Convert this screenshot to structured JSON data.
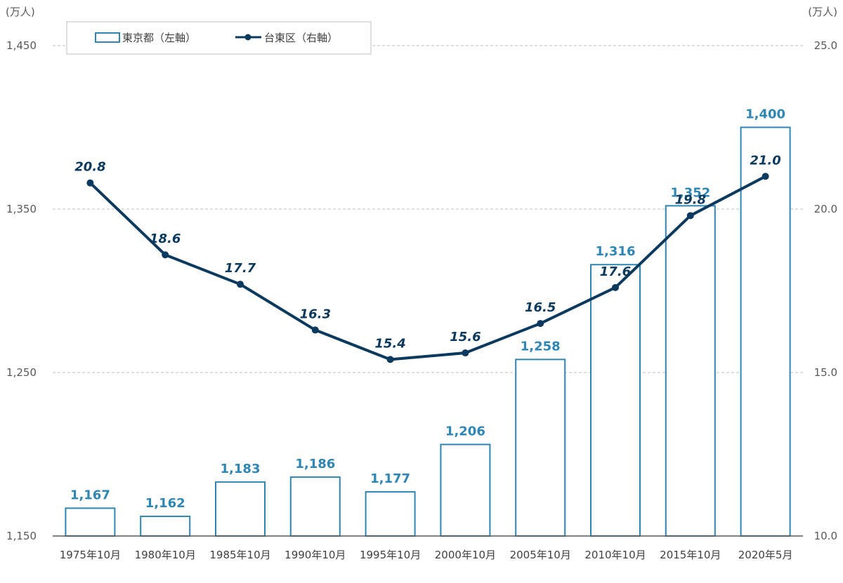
{
  "chart_data": {
    "type": "bar+line",
    "categories": [
      "1975年10月",
      "1980年10月",
      "1985年10月",
      "1990年10月",
      "1995年10月",
      "2000年10月",
      "2005年10月",
      "2010年10月",
      "2015年10月",
      "2020年5月"
    ],
    "series": [
      {
        "name": "東京都（左軸）",
        "type": "bar",
        "axis": "left",
        "values": [
          1167,
          1162,
          1183,
          1186,
          1177,
          1206,
          1258,
          1316,
          1352,
          1400
        ],
        "labels": [
          "1,167",
          "1,162",
          "1,183",
          "1,186",
          "1,177",
          "1,206",
          "1,258",
          "1,316",
          "1,352",
          "1,400"
        ],
        "color": "#2E86B5"
      },
      {
        "name": "台東区（右軸）",
        "type": "line",
        "axis": "right",
        "values": [
          20.8,
          18.6,
          17.7,
          16.3,
          15.4,
          15.6,
          16.5,
          17.6,
          19.8,
          21.0
        ],
        "labels": [
          "20.8",
          "18.6",
          "17.7",
          "16.3",
          "15.4",
          "15.6",
          "16.5",
          "17.6",
          "19.8",
          "21.0"
        ],
        "color": "#0B3A5E"
      }
    ],
    "left_axis": {
      "unit": "(万人)",
      "min": 1150,
      "max": 1450,
      "ticks": [
        1150,
        1250,
        1350,
        1450
      ],
      "tick_labels": [
        "1,150",
        "1,250",
        "1,350",
        "1,450"
      ]
    },
    "right_axis": {
      "unit": "(万人)",
      "min": 10,
      "max": 25,
      "ticks": [
        10,
        15,
        20,
        25
      ],
      "tick_labels": [
        "10.0",
        "15.0",
        "20.0",
        "25.0"
      ]
    },
    "grid": "horizontal-dashed",
    "legend": "top-left"
  }
}
